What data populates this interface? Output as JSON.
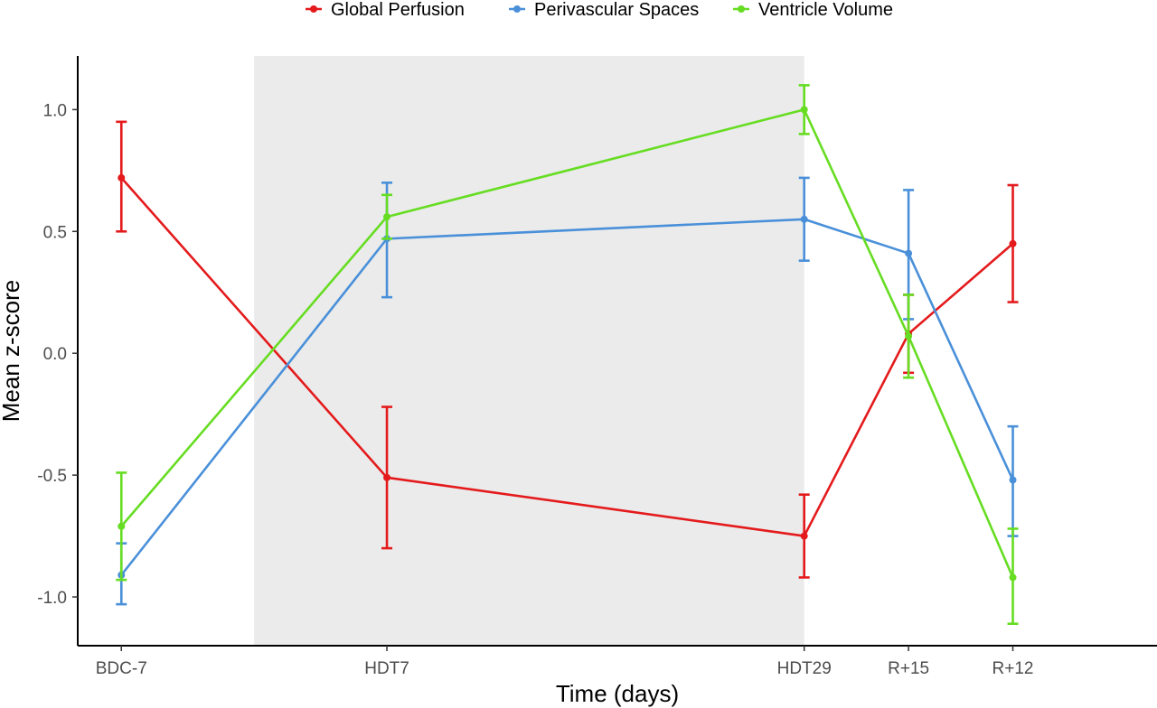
{
  "chart_data": {
    "type": "line",
    "categories": [
      "BDC-7",
      "HDT7",
      "HDT29",
      "R+15",
      "R+12"
    ],
    "x_values": [
      -7,
      7,
      29,
      34.5,
      40
    ],
    "xlabel": "Time (days)",
    "ylabel": "Mean z-score",
    "ylim": [
      -1.2,
      1.22
    ],
    "yticks": [
      -1.0,
      -0.5,
      0.0,
      0.5,
      1.0
    ],
    "ytick_labels": [
      "-1.0",
      "-0.5",
      "0.0",
      "0.5",
      "1.0"
    ],
    "shaded_region": {
      "x_start": 0,
      "x_end": 29,
      "color": "#ebebeb"
    },
    "legend": {
      "position": "top"
    },
    "grid": false,
    "series": [
      {
        "name": "Global Perfusion",
        "color": "#e41a1c",
        "values": [
          0.72,
          -0.51,
          -0.75,
          0.08,
          0.45
        ],
        "err_low": [
          0.5,
          -0.8,
          -0.92,
          -0.08,
          0.21
        ],
        "err_high": [
          0.95,
          -0.22,
          -0.58,
          0.24,
          0.69
        ]
      },
      {
        "name": "Perivascular Spaces",
        "color": "#4a90d9",
        "values": [
          -0.91,
          0.47,
          0.55,
          0.41,
          -0.52
        ],
        "err_low": [
          -1.03,
          0.23,
          0.38,
          0.14,
          -0.75
        ],
        "err_high": [
          -0.78,
          0.7,
          0.72,
          0.67,
          -0.3
        ]
      },
      {
        "name": "Ventricle Volume",
        "color": "#66dd22",
        "values": [
          -0.71,
          0.56,
          1.0,
          0.07,
          -0.92
        ],
        "err_low": [
          -0.93,
          0.47,
          0.9,
          -0.1,
          -1.11
        ],
        "err_high": [
          -0.49,
          0.65,
          1.1,
          0.24,
          -0.72
        ]
      }
    ]
  }
}
